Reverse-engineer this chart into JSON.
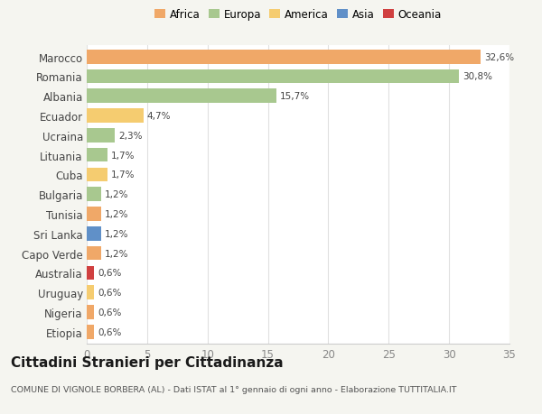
{
  "categories": [
    "Marocco",
    "Romania",
    "Albania",
    "Ecuador",
    "Ucraina",
    "Lituania",
    "Cuba",
    "Bulgaria",
    "Tunisia",
    "Sri Lanka",
    "Capo Verde",
    "Australia",
    "Uruguay",
    "Nigeria",
    "Etiopia"
  ],
  "values": [
    32.6,
    30.8,
    15.7,
    4.7,
    2.3,
    1.7,
    1.7,
    1.2,
    1.2,
    1.2,
    1.2,
    0.6,
    0.6,
    0.6,
    0.6
  ],
  "labels": [
    "32,6%",
    "30,8%",
    "15,7%",
    "4,7%",
    "2,3%",
    "1,7%",
    "1,7%",
    "1,2%",
    "1,2%",
    "1,2%",
    "1,2%",
    "0,6%",
    "0,6%",
    "0,6%",
    "0,6%"
  ],
  "bar_colors": [
    "#f0a868",
    "#a8c88f",
    "#a8c88f",
    "#f5cc70",
    "#a8c88f",
    "#a8c88f",
    "#f5cc70",
    "#a8c88f",
    "#f0a868",
    "#6090c8",
    "#f0a868",
    "#d04040",
    "#f5cc70",
    "#f0a868",
    "#f0a868"
  ],
  "legend_labels": [
    "Africa",
    "Europa",
    "America",
    "Asia",
    "Oceania"
  ],
  "legend_colors": [
    "#f0a868",
    "#a8c88f",
    "#f5cc70",
    "#6090c8",
    "#d04040"
  ],
  "title": "Cittadini Stranieri per Cittadinanza",
  "subtitle": "COMUNE DI VIGNOLE BORBERA (AL) - Dati ISTAT al 1° gennaio di ogni anno - Elaborazione TUTTITALIA.IT",
  "xlim": [
    0,
    35
  ],
  "xticks": [
    0,
    5,
    10,
    15,
    20,
    25,
    30,
    35
  ],
  "background_color": "#f5f5f0",
  "plot_bg_color": "#ffffff",
  "grid_color": "#e0e0e0"
}
